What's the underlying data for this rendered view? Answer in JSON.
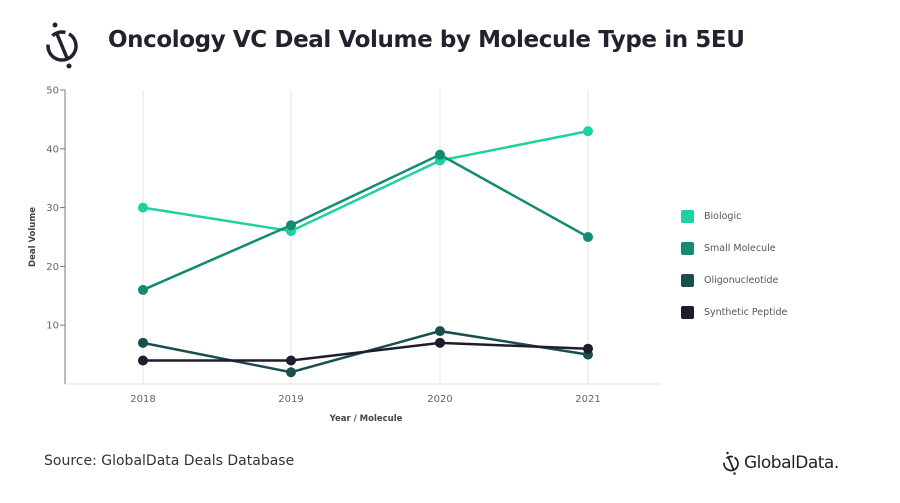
{
  "header": {
    "title": "Oncology VC Deal Volume by Molecule Type in 5EU",
    "logo_icon": "globaldata-logo-icon"
  },
  "footer": {
    "source": "Source: GlobalData Deals Database",
    "brand": "GlobalData."
  },
  "chart_data": {
    "type": "line",
    "title": "Oncology VC Deal Volume by Molecule Type in 5EU",
    "xlabel": "Year / Molecule",
    "ylabel": "Deal Volume",
    "x": [
      "2018",
      "2019",
      "2020",
      "2021"
    ],
    "ylim": [
      0,
      50
    ],
    "yticks": [
      "10",
      "20",
      "30",
      "40",
      "50"
    ],
    "grid": "vertical",
    "legend_position": "right",
    "series": [
      {
        "name": "Biologic",
        "color": "#1fd1a0",
        "values": [
          30,
          26,
          38,
          43
        ]
      },
      {
        "name": "Small Molecule",
        "color": "#138b73",
        "values": [
          16,
          27,
          39,
          25
        ]
      },
      {
        "name": "Oligonucleotide",
        "color": "#1a4f4b",
        "values": [
          7,
          2,
          9,
          5
        ]
      },
      {
        "name": "Synthetic Peptide",
        "color": "#1f1c2e",
        "values": [
          4,
          4,
          7,
          6
        ]
      }
    ]
  }
}
